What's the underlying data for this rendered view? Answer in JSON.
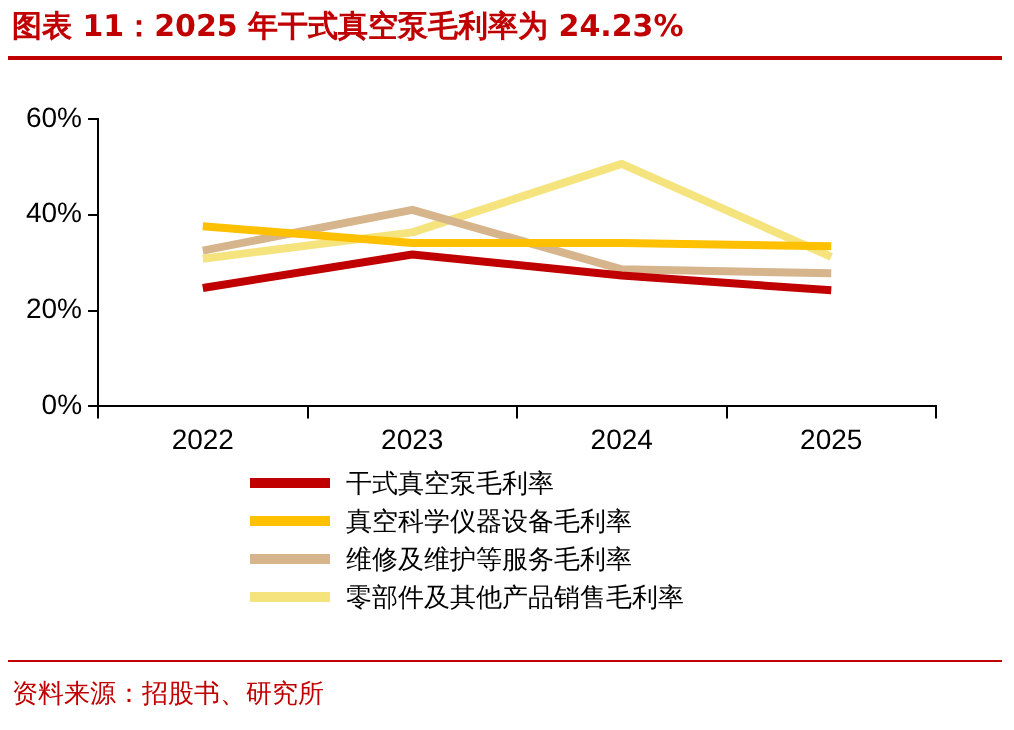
{
  "chart_data": {
    "type": "line",
    "title": "图表 11：2025 年干式真空泵毛利率为 24.23%",
    "categories": [
      "2022",
      "2023",
      "2024",
      "2025"
    ],
    "series": [
      {
        "name": "干式真空泵毛利率",
        "color": "#c00000",
        "values": [
          24.7,
          31.7,
          27.3,
          24.23
        ]
      },
      {
        "name": "真空科学仪器设备毛利率",
        "color": "#ffc000",
        "values": [
          37.6,
          34.1,
          34.1,
          33.4
        ]
      },
      {
        "name": "维修及维护等服务毛利率",
        "color": "#d6b48c",
        "values": [
          32.5,
          41.0,
          28.6,
          27.8
        ]
      },
      {
        "name": "零部件及其他产品销售毛利率",
        "color": "#f5e37e",
        "values": [
          30.8,
          36.3,
          50.6,
          31.2
        ]
      }
    ],
    "ylim": [
      0,
      60
    ],
    "yticks": [
      {
        "value": 0,
        "label": "0%"
      },
      {
        "value": 20,
        "label": "20%"
      },
      {
        "value": 40,
        "label": "40%"
      },
      {
        "value": 60,
        "label": "60%"
      }
    ],
    "grid": false,
    "legend": "bottom",
    "marker": "none",
    "line_style": "solid",
    "annotations": [
      "资料来源：招股书、研究所"
    ]
  }
}
